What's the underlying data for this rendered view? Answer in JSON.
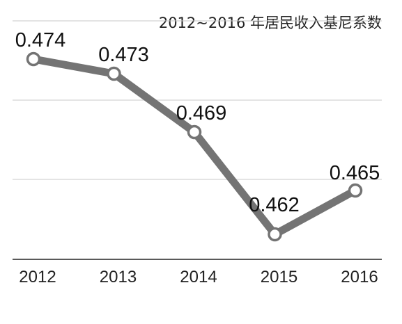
{
  "chart_data": {
    "type": "line",
    "title": "2012~2016 年居民收入基尼系数",
    "xlabel": "",
    "ylabel": "",
    "categories": [
      "2012",
      "2013",
      "2014",
      "2015",
      "2016"
    ],
    "series": [
      {
        "values": [
          0.474,
          0.473,
          0.469,
          0.462,
          0.465
        ]
      }
    ],
    "data_labels": [
      "0.474",
      "0.473",
      "0.469",
      "0.462",
      "0.465"
    ],
    "grid": true,
    "y_axis_visible": false,
    "colors": {
      "line": "#747474",
      "point_fill": "#ffffff",
      "grid": "#c9c9c9",
      "axis": "#222222"
    }
  }
}
